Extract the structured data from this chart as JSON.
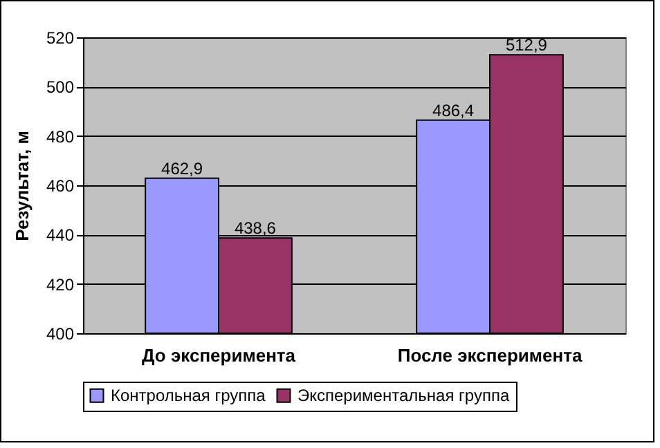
{
  "chart_data": {
    "type": "bar",
    "categories": [
      "До эксперимента",
      "После эксперимента"
    ],
    "ylabel": "Результат, м",
    "ylim": [
      400,
      520
    ],
    "yticks": [
      400,
      420,
      440,
      460,
      480,
      500,
      520
    ],
    "grid": "y",
    "legend": "bottom",
    "series": [
      {
        "name": "Контрольная группа",
        "color": "#9999ff",
        "values": [
          462.9,
          486.4
        ],
        "value_labels": [
          "462,9",
          "486,4"
        ]
      },
      {
        "name": "Экспериментальная группа",
        "color": "#993366",
        "values": [
          438.6,
          512.9
        ],
        "value_labels": [
          "438,6",
          "512,9"
        ]
      }
    ]
  }
}
